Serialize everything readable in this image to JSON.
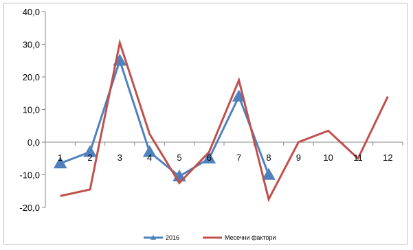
{
  "chart_data": {
    "type": "line",
    "categories": [
      "1",
      "2",
      "3",
      "4",
      "5",
      "6",
      "7",
      "8",
      "9",
      "10",
      "11",
      "12"
    ],
    "ylim": [
      -20,
      40
    ],
    "yticks": [
      "40,0",
      "30,0",
      "20,0",
      "10,0",
      "0,0",
      "-10,0",
      "-20,0"
    ],
    "ytick_values": [
      40,
      30,
      20,
      10,
      0,
      -10,
      -20
    ],
    "grid": false,
    "legend_position": "bottom",
    "series": [
      {
        "name": "2016",
        "color": "#4f81bd",
        "marker": "triangle",
        "values": [
          -6.5,
          -3,
          25,
          -3,
          -10.5,
          -5,
          14,
          -10,
          null,
          null,
          null,
          null
        ]
      },
      {
        "name": "Месечни фактори",
        "color": "#c0504d",
        "marker": "none",
        "values": [
          -16.5,
          -14.5,
          30.5,
          2.5,
          -12.5,
          -3,
          19,
          -17.5,
          0,
          3.5,
          -5,
          14
        ]
      }
    ]
  }
}
